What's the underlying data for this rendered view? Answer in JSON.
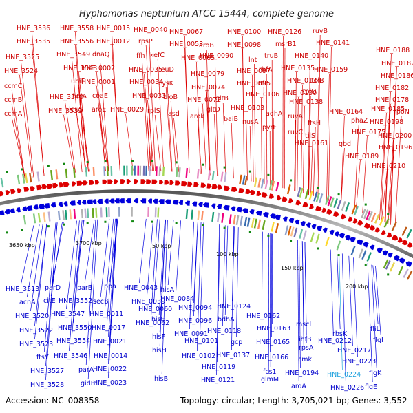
{
  "title": "Hyphomonas neptunium ATCC 15444, complete genome",
  "accession_text": "Accession: NC_008358",
  "summary_text": "Topology: circular; Length: 3,705,021 bp; Genes: 3,552",
  "colors": {
    "forward": "#dd0000",
    "reverse": "#0000dd",
    "highlight": "#22aadd",
    "backbone": "#888888",
    "gc_marker": "#118811"
  },
  "scale_ticks": [
    "3650 kbp",
    "3700 kbp",
    "50 kbp",
    "100 kbp",
    "150 kbp",
    "200 kbp"
  ],
  "forward_labels": [
    "HNE_3536",
    "HNE_3558",
    "HNE_0015",
    "HNE_0040",
    "HNE_0067",
    "HNE_0100",
    "HNE_0126",
    "ruvB",
    "HNE_3535",
    "HNE_3556",
    "HNE_0012",
    "rpsP",
    "HNE_0053",
    "aroB",
    "HNE_0098",
    "msrB1",
    "HNE_0141",
    "HNE_3525",
    "HNE_3549",
    "dnaQ",
    "ffh",
    "kefC",
    "HNE_0065",
    "HNE_0090",
    "lnt",
    "truB",
    "HNE_0140",
    "HNE_0188",
    "HNE_3524",
    "HNE_3548",
    "HNE_0002",
    "HNE_0035",
    "leuD",
    "HNE_0079",
    "HNE_0097",
    "rbfA",
    "HNE_0135",
    "HNE_0159",
    "HNE_0187",
    "ccmC",
    "ubiF",
    "HNE_0001",
    "HNE_0034",
    "cysK",
    "HNE_0074",
    "HNE_0095",
    "infB",
    "HNE_0134",
    "tolB",
    "HNE_0186",
    "ccmB",
    "HNE_3540",
    "holA",
    "coaE",
    "HNE_0033",
    "bioB",
    "HNE_0072",
    "gltB",
    "HNE_0106",
    "HNE_0130",
    "tolQ",
    "HNE_0182",
    "ccmA",
    "HNE_3539",
    "leuS",
    "aroE",
    "HNE_0029",
    "rplS",
    "asd",
    "arok",
    "gltD",
    "HNE_0103",
    "adhA",
    "HNE_0138",
    "HNE_0178",
    "baiB",
    "nusA",
    "pyrF",
    "ruvA",
    "ruvC",
    "ftsH",
    "HNE_0164",
    "HNE_0185",
    "rpoN",
    "phaZ",
    "HNE_0198",
    "tilS",
    "HNE_0175",
    "HNE_0200",
    "HNE_0161",
    "gbd",
    "HNE_0196",
    "HNE_0189",
    "HNE_0210"
  ],
  "reverse_labels": [
    "HNE_3513",
    "parD",
    "parB",
    "ppa",
    "HNE_0043",
    "hisA",
    "acnA",
    "citE",
    "HNE_3552",
    "secB",
    "HNE_0039",
    "HNE_0084",
    "HNE_0060",
    "HNE_0094",
    "HNE_0124",
    "HNE_3520",
    "HNE_3547",
    "HNE_0011",
    "hisE",
    "HNE_0062",
    "HNE_0096",
    "bdhA",
    "HNE_0162",
    "HNE_3522",
    "HNE_3550",
    "HNE_0017",
    "hisF",
    "HNE_0091",
    "HNE_0118",
    "HNE_0163",
    "mscL",
    "HNE_3523",
    "HNE_3554",
    "HNE_0021",
    "HNE_0101",
    "gcp",
    "ihfB",
    "rbsK",
    "fliL",
    "ftsY",
    "HNE_3546",
    "HNE_0014",
    "hisH",
    "HNE_0102",
    "HNE_0137",
    "HNE_0165",
    "rpsA",
    "HNE_0212",
    "flgI",
    "HNE_3527",
    "parA",
    "HNE_0022",
    "HNE_0119",
    "fcs1",
    "HNE_0166",
    "cmk",
    "HNE_0217",
    "HNE_0223",
    "flgK",
    "HNE_3528",
    "gidB",
    "HNE_0023",
    "hisB",
    "HNE_0121",
    "glmM",
    "HNE_0194",
    "aroA",
    "HNE_0226",
    "flgE"
  ],
  "highlight_labels": [
    "HNE_0224"
  ]
}
